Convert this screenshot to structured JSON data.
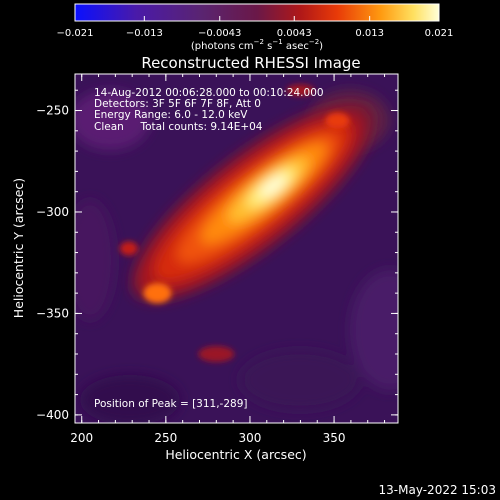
{
  "chart_data": {
    "type": "heatmap",
    "title": "Reconstructed RHESSI Image",
    "annotation_lines": [
      "14-Aug-2012 00:06:28.000 to 00:10:24.000",
      "Detectors: 3F 5F 6F 7F 8F, Att 0",
      "Energy Range: 6.0 - 12.0 keV",
      "Clean     Total counts: 9.14E+04"
    ],
    "peak_label": "Position of Peak = [311,-289]",
    "xlabel": "Heliocentric X (arcsec)",
    "ylabel": "Heliocentric Y (arcsec)",
    "xlim": [
      196,
      388
    ],
    "ylim": [
      -404,
      -232
    ],
    "x_ticks": [
      200,
      250,
      300,
      350
    ],
    "x_tick_labels": [
      "200",
      "250",
      "300",
      "350"
    ],
    "y_ticks": [
      -250,
      -300,
      -350,
      -400
    ],
    "y_tick_labels": [
      "−250",
      "−300",
      "−350",
      "−400"
    ],
    "colorbar": {
      "range": [
        -0.021,
        0.021
      ],
      "ticks": [
        -0.021,
        -0.013,
        -0.0043,
        0.0043,
        0.013,
        0.021
      ],
      "tick_labels": [
        "−0.021",
        "−0.013",
        "−0.0043",
        "0.0043",
        "0.013",
        "0.021"
      ],
      "unit_label": "(photons cm",
      "unit_label_2": " s",
      "unit_label_3": " asec",
      "unit_label_4": ")",
      "unit_exp_1": "−2",
      "unit_exp_2": "−1",
      "unit_exp_3": "−2"
    },
    "source": {
      "peak_x": 311,
      "peak_y": -289,
      "peak_value": 0.021,
      "orientation": "elongated from lower-left (~245,-340) to upper-right (~355,-255)"
    },
    "colormap": "hot/fire (blue-purple negative to white positive)"
  },
  "footer": {
    "timestamp": "13-May-2022 15:03"
  }
}
